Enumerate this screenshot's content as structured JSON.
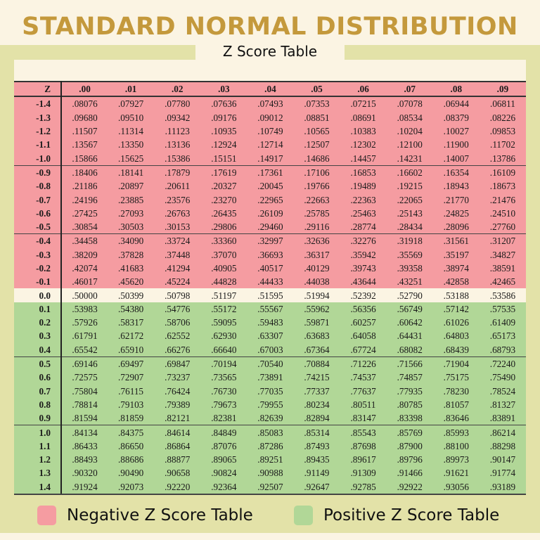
{
  "header": {
    "title": "STANDARD NORMAL DISTRIBUTION",
    "subtitle": "Z Score Table"
  },
  "colors": {
    "title": "#c4993c",
    "negative": "#f59ca1",
    "positive": "#b1d797",
    "zero_row": "#fbf4e3",
    "frame": "#e3e2a8",
    "background": "#fbf4e3"
  },
  "legend": {
    "negative_label": "Negative Z Score Table",
    "positive_label": "Positive Z Score Table"
  },
  "table": {
    "z_header": "Z",
    "columns": [
      ".00",
      ".01",
      ".02",
      ".03",
      ".04",
      ".05",
      ".06",
      ".07",
      ".08",
      ".09"
    ],
    "rows": [
      {
        "z": "-1.4",
        "values": [
          ".08076",
          ".07927",
          ".07780",
          ".07636",
          ".07493",
          ".07353",
          ".07215",
          ".07078",
          ".06944",
          ".06811"
        ]
      },
      {
        "z": "-1.3",
        "values": [
          ".09680",
          ".09510",
          ".09342",
          ".09176",
          ".09012",
          ".08851",
          ".08691",
          ".08534",
          ".08379",
          ".08226"
        ]
      },
      {
        "z": "-1.2",
        "values": [
          ".11507",
          ".11314",
          ".11123",
          ".10935",
          ".10749",
          ".10565",
          ".10383",
          ".10204",
          ".10027",
          ".09853"
        ]
      },
      {
        "z": "-1.1",
        "values": [
          ".13567",
          ".13350",
          ".13136",
          ".12924",
          ".12714",
          ".12507",
          ".12302",
          ".12100",
          ".11900",
          ".11702"
        ]
      },
      {
        "z": "-1.0",
        "values": [
          ".15866",
          ".15625",
          ".15386",
          ".15151",
          ".14917",
          ".14686",
          ".14457",
          ".14231",
          ".14007",
          ".13786"
        ]
      },
      {
        "z": "-0.9",
        "values": [
          ".18406",
          ".18141",
          ".17879",
          ".17619",
          ".17361",
          ".17106",
          ".16853",
          ".16602",
          ".16354",
          ".16109"
        ]
      },
      {
        "z": "-0.8",
        "values": [
          ".21186",
          ".20897",
          ".20611",
          ".20327",
          ".20045",
          ".19766",
          ".19489",
          ".19215",
          ".18943",
          ".18673"
        ]
      },
      {
        "z": "-0.7",
        "values": [
          ".24196",
          ".23885",
          ".23576",
          ".23270",
          ".22965",
          ".22663",
          ".22363",
          ".22065",
          ".21770",
          ".21476"
        ]
      },
      {
        "z": "-0.6",
        "values": [
          ".27425",
          ".27093",
          ".26763",
          ".26435",
          ".26109",
          ".25785",
          ".25463",
          ".25143",
          ".24825",
          ".24510"
        ]
      },
      {
        "z": "-0.5",
        "values": [
          ".30854",
          ".30503",
          ".30153",
          ".29806",
          ".29460",
          ".29116",
          ".28774",
          ".28434",
          ".28096",
          ".27760"
        ]
      },
      {
        "z": "-0.4",
        "values": [
          ".34458",
          ".34090",
          ".33724",
          ".33360",
          ".32997",
          ".32636",
          ".32276",
          ".31918",
          ".31561",
          ".31207"
        ]
      },
      {
        "z": "-0.3",
        "values": [
          ".38209",
          ".37828",
          ".37448",
          ".37070",
          ".36693",
          ".36317",
          ".35942",
          ".35569",
          ".35197",
          ".34827"
        ]
      },
      {
        "z": "-0.2",
        "values": [
          ".42074",
          ".41683",
          ".41294",
          ".40905",
          ".40517",
          ".40129",
          ".39743",
          ".39358",
          ".38974",
          ".38591"
        ]
      },
      {
        "z": "-0.1",
        "values": [
          ".46017",
          ".45620",
          ".45224",
          ".44828",
          ".44433",
          ".44038",
          ".43644",
          ".43251",
          ".42858",
          ".42465"
        ]
      },
      {
        "z": "0.0",
        "values": [
          ".50000",
          ".50399",
          ".50798",
          ".51197",
          ".51595",
          ".51994",
          ".52392",
          ".52790",
          ".53188",
          ".53586"
        ]
      },
      {
        "z": "0.1",
        "values": [
          ".53983",
          ".54380",
          ".54776",
          ".55172",
          ".55567",
          ".55962",
          ".56356",
          ".56749",
          ".57142",
          ".57535"
        ]
      },
      {
        "z": "0.2",
        "values": [
          ".57926",
          ".58317",
          ".58706",
          ".59095",
          ".59483",
          ".59871",
          ".60257",
          ".60642",
          ".61026",
          ".61409"
        ]
      },
      {
        "z": "0.3",
        "values": [
          ".61791",
          ".62172",
          ".62552",
          ".62930",
          ".63307",
          ".63683",
          ".64058",
          ".64431",
          ".64803",
          ".65173"
        ]
      },
      {
        "z": "0.4",
        "values": [
          ".65542",
          ".65910",
          ".66276",
          ".66640",
          ".67003",
          ".67364",
          ".67724",
          ".68082",
          ".68439",
          ".68793"
        ]
      },
      {
        "z": "0.5",
        "values": [
          ".69146",
          ".69497",
          ".69847",
          ".70194",
          ".70540",
          ".70884",
          ".71226",
          ".71566",
          ".71904",
          ".72240"
        ]
      },
      {
        "z": "0.6",
        "values": [
          ".72575",
          ".72907",
          ".73237",
          ".73565",
          ".73891",
          ".74215",
          ".74537",
          ".74857",
          ".75175",
          ".75490"
        ]
      },
      {
        "z": "0.7",
        "values": [
          ".75804",
          ".76115",
          ".76424",
          ".76730",
          ".77035",
          ".77337",
          ".77637",
          ".77935",
          ".78230",
          ".78524"
        ]
      },
      {
        "z": "0.8",
        "values": [
          ".78814",
          ".79103",
          ".79389",
          ".79673",
          ".79955",
          ".80234",
          ".80511",
          ".80785",
          ".81057",
          ".81327"
        ]
      },
      {
        "z": "0.9",
        "values": [
          ".81594",
          ".81859",
          ".82121",
          ".82381",
          ".82639",
          ".82894",
          ".83147",
          ".83398",
          ".83646",
          ".83891"
        ]
      },
      {
        "z": "1.0",
        "values": [
          ".84134",
          ".84375",
          ".84614",
          ".84849",
          ".85083",
          ".85314",
          ".85543",
          ".85769",
          ".85993",
          ".86214"
        ]
      },
      {
        "z": "1.1",
        "values": [
          ".86433",
          ".86650",
          ".86864",
          ".87076",
          ".87286",
          ".87493",
          ".87698",
          ".87900",
          ".88100",
          ".88298"
        ]
      },
      {
        "z": "1.2",
        "values": [
          ".88493",
          ".88686",
          ".88877",
          ".89065",
          ".89251",
          ".89435",
          ".89617",
          ".89796",
          ".89973",
          ".90147"
        ]
      },
      {
        "z": "1.3",
        "values": [
          ".90320",
          ".90490",
          ".90658",
          ".90824",
          ".90988",
          ".91149",
          ".91309",
          ".91466",
          ".91621",
          ".91774"
        ]
      },
      {
        "z": "1.4",
        "values": [
          ".91924",
          ".92073",
          ".92220",
          ".92364",
          ".92507",
          ".92647",
          ".92785",
          ".92922",
          ".93056",
          ".93189"
        ]
      }
    ]
  },
  "chart_data": {
    "type": "table",
    "title": "STANDARD NORMAL DISTRIBUTION",
    "subtitle": "Z Score Table",
    "row_header": "Z",
    "columns": [
      ".00",
      ".01",
      ".02",
      ".03",
      ".04",
      ".05",
      ".06",
      ".07",
      ".08",
      ".09"
    ],
    "row_labels": [
      "-1.4",
      "-1.3",
      "-1.2",
      "-1.1",
      "-1.0",
      "-0.9",
      "-0.8",
      "-0.7",
      "-0.6",
      "-0.5",
      "-0.4",
      "-0.3",
      "-0.2",
      "-0.1",
      "0.0",
      "0.1",
      "0.2",
      "0.3",
      "0.4",
      "0.5",
      "0.6",
      "0.7",
      "0.8",
      "0.9",
      "1.0",
      "1.1",
      "1.2",
      "1.3",
      "1.4"
    ],
    "values": [
      [
        0.08076,
        0.07927,
        0.0778,
        0.07636,
        0.07493,
        0.07353,
        0.07215,
        0.07078,
        0.06944,
        0.06811
      ],
      [
        0.0968,
        0.0951,
        0.09342,
        0.09176,
        0.09012,
        0.08851,
        0.08691,
        0.08534,
        0.08379,
        0.08226
      ],
      [
        0.11507,
        0.11314,
        0.11123,
        0.10935,
        0.10749,
        0.10565,
        0.10383,
        0.10204,
        0.10027,
        0.09853
      ],
      [
        0.13567,
        0.1335,
        0.13136,
        0.12924,
        0.12714,
        0.12507,
        0.12302,
        0.121,
        0.119,
        0.11702
      ],
      [
        0.15866,
        0.15625,
        0.15386,
        0.15151,
        0.14917,
        0.14686,
        0.14457,
        0.14231,
        0.14007,
        0.13786
      ],
      [
        0.18406,
        0.18141,
        0.17879,
        0.17619,
        0.17361,
        0.17106,
        0.16853,
        0.16602,
        0.16354,
        0.16109
      ],
      [
        0.21186,
        0.20897,
        0.20611,
        0.20327,
        0.20045,
        0.19766,
        0.19489,
        0.19215,
        0.18943,
        0.18673
      ],
      [
        0.24196,
        0.23885,
        0.23576,
        0.2327,
        0.22965,
        0.22663,
        0.22363,
        0.22065,
        0.2177,
        0.21476
      ],
      [
        0.27425,
        0.27093,
        0.26763,
        0.26435,
        0.26109,
        0.25785,
        0.25463,
        0.25143,
        0.24825,
        0.2451
      ],
      [
        0.30854,
        0.30503,
        0.30153,
        0.29806,
        0.2946,
        0.29116,
        0.28774,
        0.28434,
        0.28096,
        0.2776
      ],
      [
        0.34458,
        0.3409,
        0.33724,
        0.3336,
        0.32997,
        0.32636,
        0.32276,
        0.31918,
        0.31561,
        0.31207
      ],
      [
        0.38209,
        0.37828,
        0.37448,
        0.3707,
        0.36693,
        0.36317,
        0.35942,
        0.35569,
        0.35197,
        0.34827
      ],
      [
        0.42074,
        0.41683,
        0.41294,
        0.40905,
        0.40517,
        0.40129,
        0.39743,
        0.39358,
        0.38974,
        0.38591
      ],
      [
        0.46017,
        0.4562,
        0.45224,
        0.44828,
        0.44433,
        0.44038,
        0.43644,
        0.43251,
        0.42858,
        0.42465
      ],
      [
        0.5,
        0.50399,
        0.50798,
        0.51197,
        0.51595,
        0.51994,
        0.52392,
        0.5279,
        0.53188,
        0.53586
      ],
      [
        0.53983,
        0.5438,
        0.54776,
        0.55172,
        0.55567,
        0.55962,
        0.56356,
        0.56749,
        0.57142,
        0.57535
      ],
      [
        0.57926,
        0.58317,
        0.58706,
        0.59095,
        0.59483,
        0.59871,
        0.60257,
        0.60642,
        0.61026,
        0.61409
      ],
      [
        0.61791,
        0.62172,
        0.62552,
        0.6293,
        0.63307,
        0.63683,
        0.64058,
        0.64431,
        0.64803,
        0.65173
      ],
      [
        0.65542,
        0.6591,
        0.66276,
        0.6664,
        0.67003,
        0.67364,
        0.67724,
        0.68082,
        0.68439,
        0.68793
      ],
      [
        0.69146,
        0.69497,
        0.69847,
        0.70194,
        0.7054,
        0.70884,
        0.71226,
        0.71566,
        0.71904,
        0.7224
      ],
      [
        0.72575,
        0.72907,
        0.73237,
        0.73565,
        0.73891,
        0.74215,
        0.74537,
        0.74857,
        0.75175,
        0.7549
      ],
      [
        0.75804,
        0.76115,
        0.76424,
        0.7673,
        0.77035,
        0.77337,
        0.77637,
        0.77935,
        0.7823,
        0.78524
      ],
      [
        0.78814,
        0.79103,
        0.79389,
        0.79673,
        0.79955,
        0.80234,
        0.80511,
        0.80785,
        0.81057,
        0.81327
      ],
      [
        0.81594,
        0.81859,
        0.82121,
        0.82381,
        0.82639,
        0.82894,
        0.83147,
        0.83398,
        0.83646,
        0.83891
      ],
      [
        0.84134,
        0.84375,
        0.84614,
        0.84849,
        0.85083,
        0.85314,
        0.85543,
        0.85769,
        0.85993,
        0.86214
      ],
      [
        0.86433,
        0.8665,
        0.86864,
        0.87076,
        0.87286,
        0.87493,
        0.87698,
        0.879,
        0.881,
        0.88298
      ],
      [
        0.88493,
        0.88686,
        0.88877,
        0.89065,
        0.89251,
        0.89435,
        0.89617,
        0.89796,
        0.89973,
        0.90147
      ],
      [
        0.9032,
        0.9049,
        0.90658,
        0.90824,
        0.90988,
        0.91149,
        0.91309,
        0.91466,
        0.91621,
        0.91774
      ],
      [
        0.91924,
        0.92073,
        0.9222,
        0.92364,
        0.92507,
        0.92647,
        0.92785,
        0.92922,
        0.93056,
        0.93189
      ]
    ],
    "legend": [
      {
        "label": "Negative Z Score Table",
        "color": "#f59ca1"
      },
      {
        "label": "Positive Z Score Table",
        "color": "#b1d797"
      }
    ],
    "legend_position": "bottom"
  }
}
